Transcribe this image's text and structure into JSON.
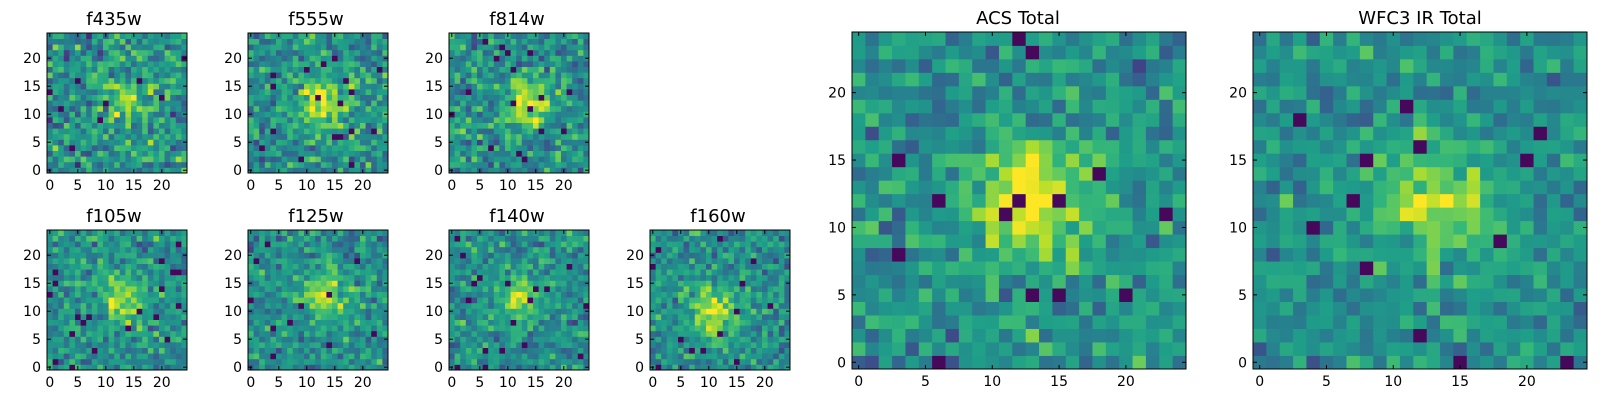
{
  "chart_data": [
    {
      "type": "heatmap",
      "title": "f435w",
      "xticks": [
        0,
        5,
        10,
        15,
        20
      ],
      "yticks": [
        0,
        5,
        10,
        15,
        20
      ],
      "xlim": [
        0,
        25
      ],
      "ylim": [
        0,
        25
      ],
      "colormap": "viridis",
      "source_peak": [
        14,
        13
      ],
      "peak": 0.55,
      "noise": 0.45,
      "seed": 11
    },
    {
      "type": "heatmap",
      "title": "f555w",
      "xticks": [
        0,
        5,
        10,
        15,
        20
      ],
      "yticks": [
        0,
        5,
        10,
        15,
        20
      ],
      "xlim": [
        0,
        25
      ],
      "ylim": [
        0,
        25
      ],
      "colormap": "viridis",
      "source_peak": [
        13,
        12
      ],
      "peak": 0.85,
      "noise": 0.4,
      "seed": 23
    },
    {
      "type": "heatmap",
      "title": "f814w",
      "xticks": [
        0,
        5,
        10,
        15,
        20
      ],
      "yticks": [
        0,
        5,
        10,
        15,
        20
      ],
      "xlim": [
        0,
        25
      ],
      "ylim": [
        0,
        25
      ],
      "colormap": "viridis",
      "source_peak": [
        14,
        12
      ],
      "peak": 0.8,
      "noise": 0.4,
      "seed": 37
    },
    {
      "type": "heatmap",
      "title": "f105w",
      "xticks": [
        0,
        5,
        10,
        15,
        20
      ],
      "yticks": [
        0,
        5,
        10,
        15,
        20
      ],
      "xlim": [
        0,
        25
      ],
      "ylim": [
        0,
        25
      ],
      "colormap": "viridis",
      "source_peak": [
        13,
        12
      ],
      "peak": 0.6,
      "noise": 0.35,
      "seed": 41
    },
    {
      "type": "heatmap",
      "title": "f125w",
      "xticks": [
        0,
        5,
        10,
        15,
        20
      ],
      "yticks": [
        0,
        5,
        10,
        15,
        20
      ],
      "xlim": [
        0,
        25
      ],
      "ylim": [
        0,
        25
      ],
      "colormap": "viridis",
      "source_peak": [
        13,
        13
      ],
      "peak": 0.6,
      "noise": 0.35,
      "seed": 53
    },
    {
      "type": "heatmap",
      "title": "f140w",
      "xticks": [
        0,
        5,
        10,
        15,
        20
      ],
      "yticks": [
        0,
        5,
        10,
        15,
        20
      ],
      "xlim": [
        0,
        25
      ],
      "ylim": [
        0,
        25
      ],
      "colormap": "viridis",
      "source_peak": [
        12,
        12
      ],
      "peak": 0.6,
      "noise": 0.35,
      "seed": 67
    },
    {
      "type": "heatmap",
      "title": "f160w",
      "xticks": [
        0,
        5,
        10,
        15,
        20
      ],
      "yticks": [
        0,
        5,
        10,
        15,
        20
      ],
      "xlim": [
        0,
        25
      ],
      "ylim": [
        0,
        25
      ],
      "colormap": "viridis",
      "source_peak": [
        11,
        10
      ],
      "peak": 0.7,
      "noise": 0.35,
      "seed": 79
    },
    {
      "type": "heatmap",
      "title": "ACS Total",
      "xticks": [
        0,
        5,
        10,
        15,
        20
      ],
      "yticks": [
        0,
        5,
        10,
        15,
        20
      ],
      "xlim": [
        0,
        25
      ],
      "ylim": [
        0,
        25
      ],
      "colormap": "viridis",
      "source_peak": [
        13,
        12
      ],
      "peak": 0.9,
      "noise": 0.35,
      "seed": 97
    },
    {
      "type": "heatmap",
      "title": "WFC3 IR Total",
      "xticks": [
        0,
        5,
        10,
        15,
        20
      ],
      "yticks": [
        0,
        5,
        10,
        15,
        20
      ],
      "xlim": [
        0,
        25
      ],
      "ylim": [
        0,
        25
      ],
      "colormap": "viridis",
      "source_peak": [
        13,
        12
      ],
      "peak": 0.7,
      "noise": 0.3,
      "seed": 113
    }
  ]
}
